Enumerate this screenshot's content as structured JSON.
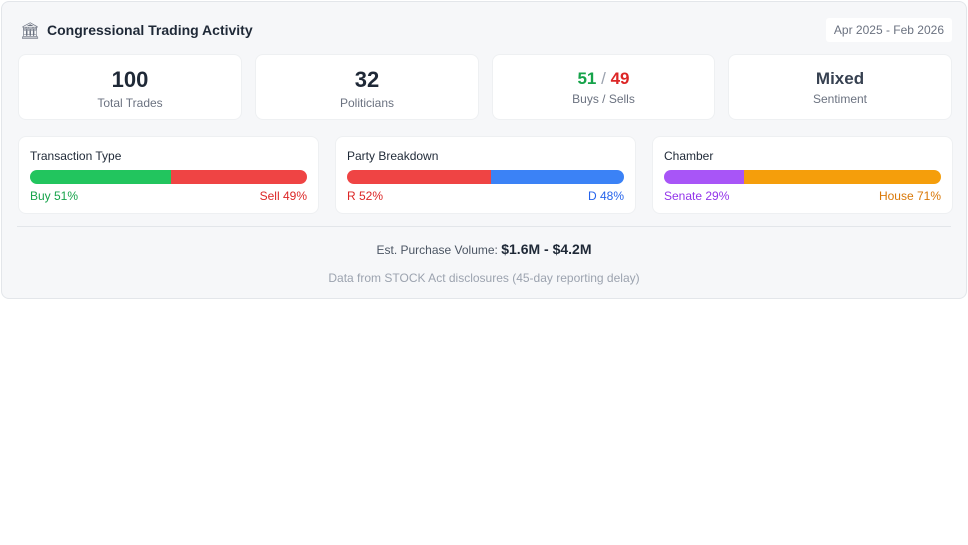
{
  "header": {
    "title": "Congressional Trading Activity",
    "date_range": "Apr 2025 - Feb 2026",
    "icon": "bank-icon"
  },
  "stats": [
    {
      "value": "100",
      "label": "Total Trades"
    },
    {
      "value": "32",
      "label": "Politicians"
    },
    {
      "buys": "51",
      "sep": "/",
      "sells": "49",
      "label": "Buys / Sells"
    },
    {
      "value": "Mixed",
      "label": "Sentiment"
    }
  ],
  "breakdowns": [
    {
      "title": "Transaction Type",
      "left_label": "Buy 51%",
      "right_label": "Sell 49%",
      "left_pct": 51,
      "left_color": "#22c55e",
      "right_color": "#ef4444",
      "left_text_color": "#16a34a",
      "right_text_color": "#dc2626"
    },
    {
      "title": "Party Breakdown",
      "left_label": "R 52%",
      "right_label": "D 48%",
      "left_pct": 52,
      "left_color": "#ef4444",
      "right_color": "#3b82f6",
      "left_text_color": "#dc2626",
      "right_text_color": "#2563eb"
    },
    {
      "title": "Chamber",
      "left_label": "Senate 29%",
      "right_label": "House 71%",
      "left_pct": 29,
      "left_color": "#a855f7",
      "right_color": "#f59e0b",
      "left_text_color": "#9333ea",
      "right_text_color": "#d97706"
    }
  ],
  "volume": {
    "label": "Est. Purchase Volume:",
    "value": "$1.6M - $4.2M"
  },
  "footer": "Data from STOCK Act disclosures (45-day reporting delay)"
}
